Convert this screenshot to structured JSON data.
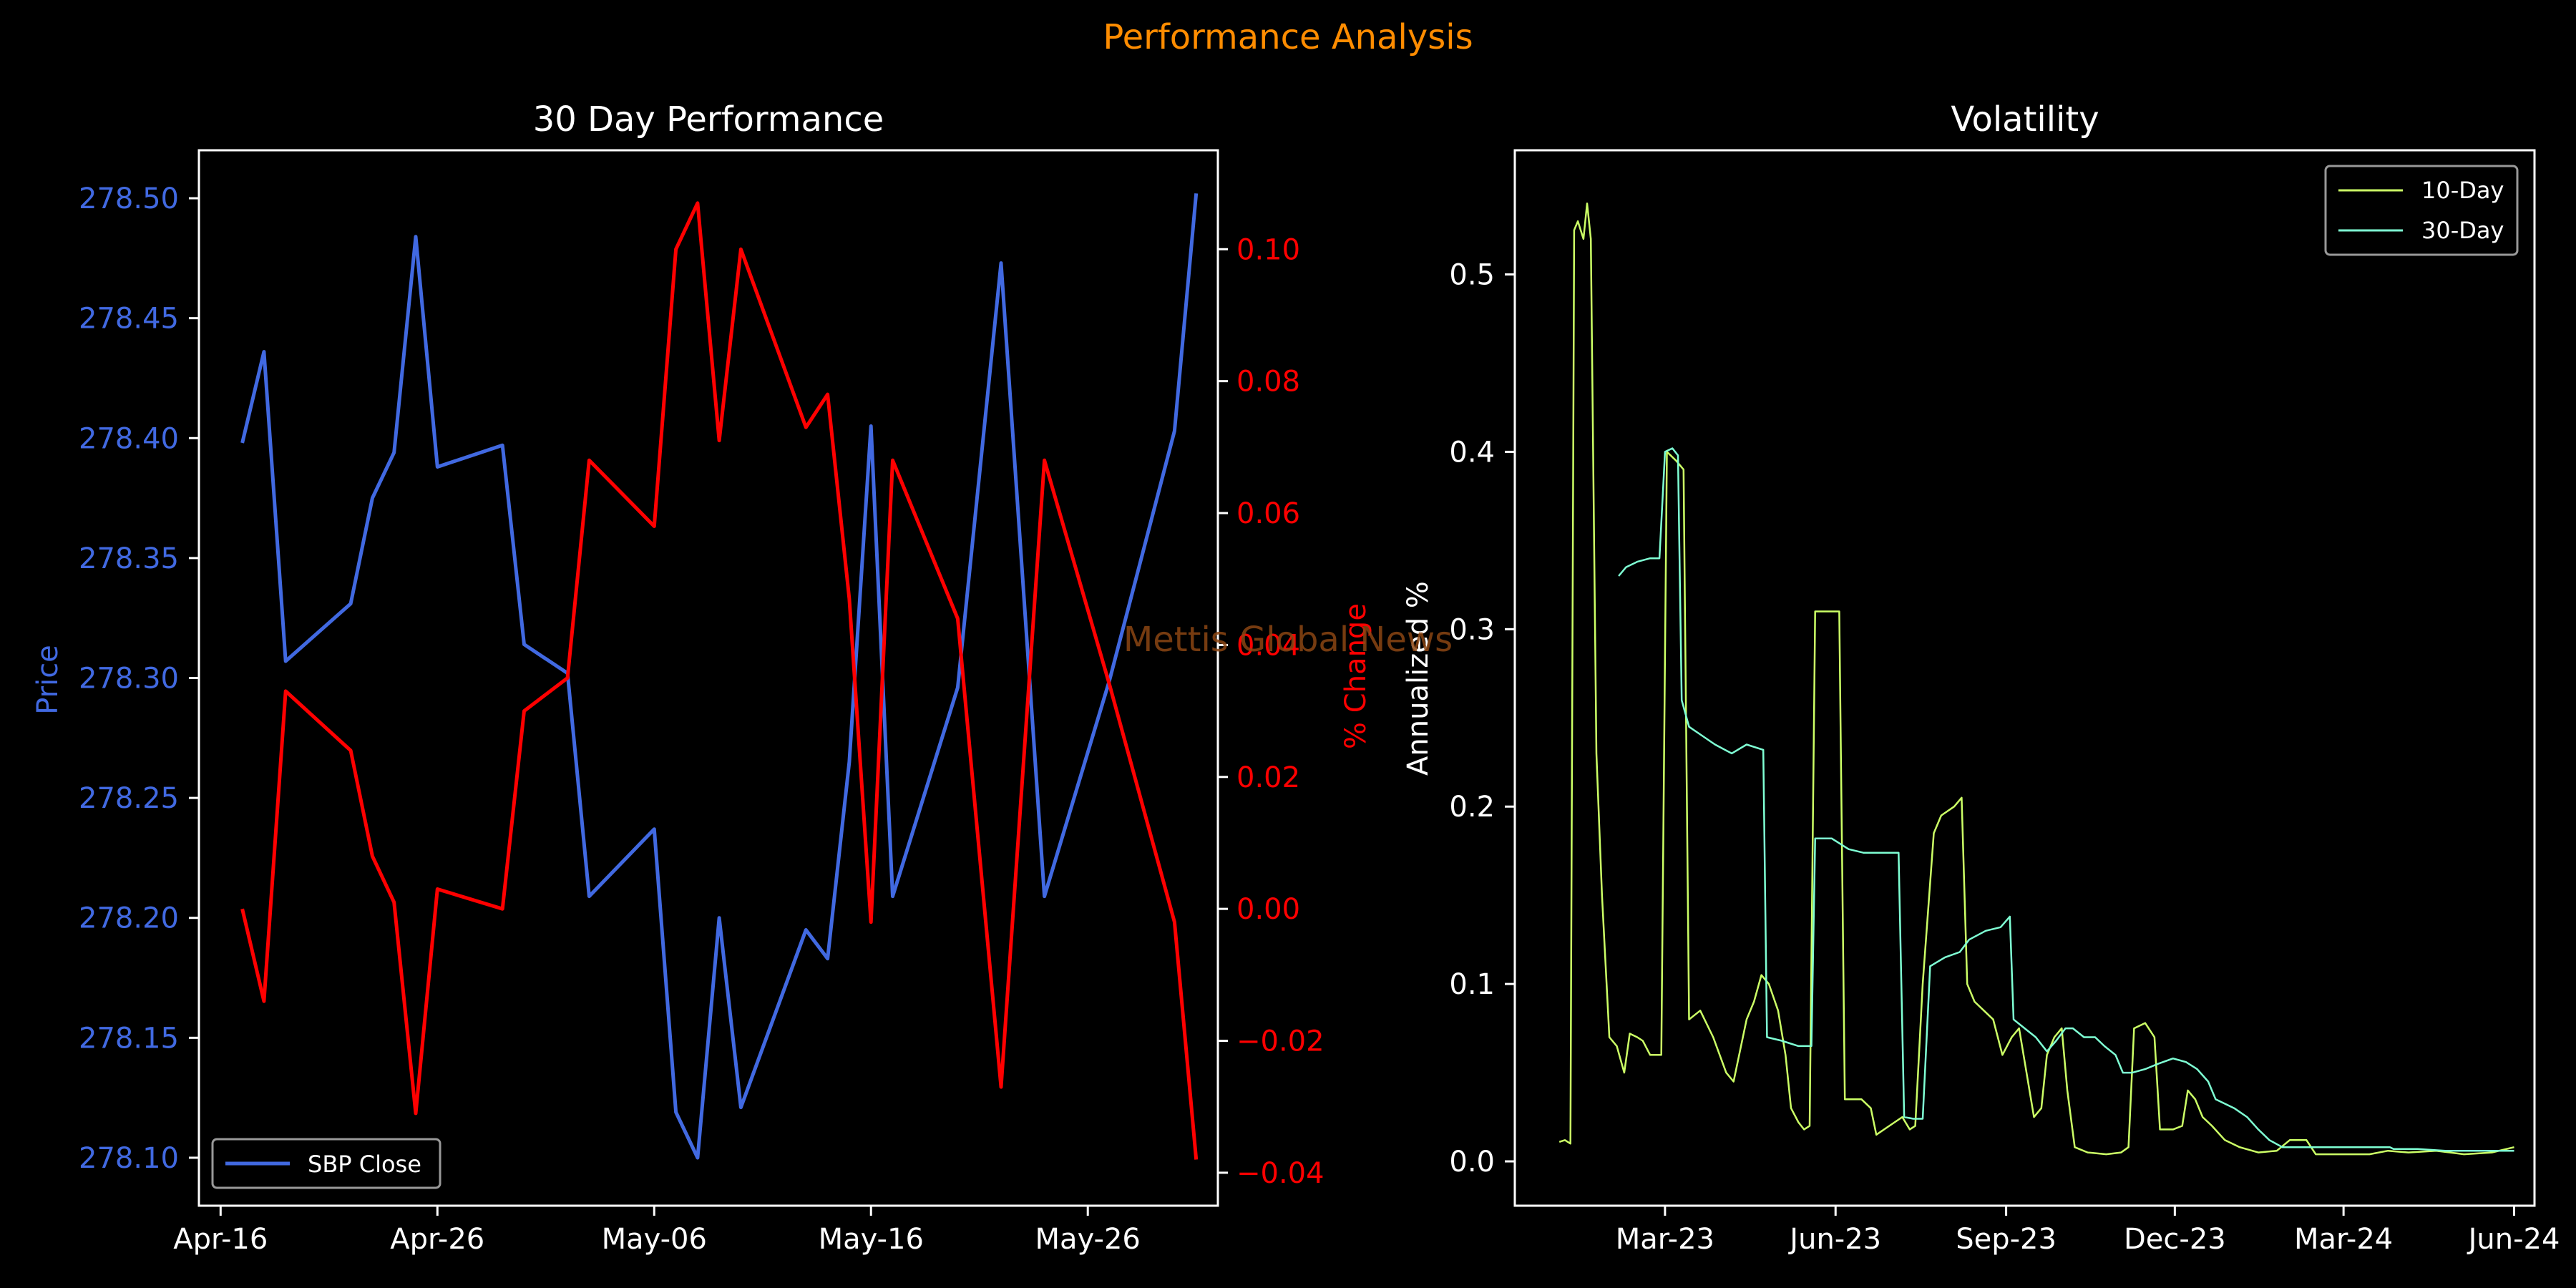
{
  "figure": {
    "suptitle": "Performance Analysis",
    "watermark": "Mettis Global News",
    "colors": {
      "background": "#000000",
      "suptitle": "#ff8c00",
      "price": "#4169e1",
      "pct": "#ff0000",
      "vol10": "#ccff66",
      "vol30": "#7fffd4",
      "axes": "#ffffff",
      "watermark": "#8b4513"
    }
  },
  "chart_data": [
    {
      "type": "line",
      "title": "30 Day Performance",
      "xlabel": "",
      "ylabel": "Price",
      "y2label": "% Change",
      "x_ticks": [
        "Apr-16",
        "Apr-26",
        "May-06",
        "May-16",
        "May-26"
      ],
      "x_tick_dates": [
        "2024-04-16",
        "2024-04-26",
        "2024-05-06",
        "2024-05-16",
        "2024-05-26"
      ],
      "xlim": [
        "2024-04-15",
        "2024-06-01"
      ],
      "ylim": [
        278.08,
        278.52
      ],
      "y_ticks": [
        "278.10",
        "278.15",
        "278.20",
        "278.25",
        "278.30",
        "278.35",
        "278.40",
        "278.45",
        "278.50"
      ],
      "y2lim": [
        -0.045,
        0.115
      ],
      "y2_ticks": [
        "−0.04",
        "−0.02",
        "0.00",
        "0.02",
        "0.04",
        "0.06",
        "0.08",
        "0.10"
      ],
      "legend": {
        "placement": "lower-left",
        "entries": [
          "SBP Close"
        ]
      },
      "series": [
        {
          "name": "SBP Close",
          "axis": "left",
          "points": [
            [
              "2024-04-17",
              278.398
            ],
            [
              "2024-04-18",
              278.436
            ],
            [
              "2024-04-19",
              278.307
            ],
            [
              "2024-04-22",
              278.331
            ],
            [
              "2024-04-23",
              278.375
            ],
            [
              "2024-04-24",
              278.394
            ],
            [
              "2024-04-25",
              278.484
            ],
            [
              "2024-04-26",
              278.388
            ],
            [
              "2024-04-29",
              278.397
            ],
            [
              "2024-04-30",
              278.314
            ],
            [
              "2024-05-02",
              278.302
            ],
            [
              "2024-05-03",
              278.209
            ],
            [
              "2024-05-06",
              278.237
            ],
            [
              "2024-05-07",
              278.119
            ],
            [
              "2024-05-08",
              278.1
            ],
            [
              "2024-05-09",
              278.2
            ],
            [
              "2024-05-10",
              278.121
            ],
            [
              "2024-05-13",
              278.195
            ],
            [
              "2024-05-14",
              278.183
            ],
            [
              "2024-05-15",
              278.265
            ],
            [
              "2024-05-16",
              278.405
            ],
            [
              "2024-05-17",
              278.209
            ],
            [
              "2024-05-20",
              278.296
            ],
            [
              "2024-05-22",
              278.473
            ],
            [
              "2024-05-24",
              278.209
            ],
            [
              "2024-05-27",
              278.299
            ],
            [
              "2024-05-30",
              278.403
            ],
            [
              "2024-05-31",
              278.502
            ]
          ]
        },
        {
          "name": "% Change",
          "axis": "right",
          "points": [
            [
              "2024-04-17",
              0.0
            ],
            [
              "2024-04-18",
              -0.014
            ],
            [
              "2024-04-19",
              0.033
            ],
            [
              "2024-04-22",
              0.024
            ],
            [
              "2024-04-23",
              0.008
            ],
            [
              "2024-04-24",
              0.001
            ],
            [
              "2024-04-25",
              -0.031
            ],
            [
              "2024-04-26",
              0.003
            ],
            [
              "2024-04-29",
              0.0
            ],
            [
              "2024-04-30",
              0.03
            ],
            [
              "2024-05-02",
              0.035
            ],
            [
              "2024-05-03",
              0.068
            ],
            [
              "2024-05-06",
              0.058
            ],
            [
              "2024-05-07",
              0.1
            ],
            [
              "2024-05-08",
              0.107
            ],
            [
              "2024-05-09",
              0.071
            ],
            [
              "2024-05-10",
              0.1
            ],
            [
              "2024-05-13",
              0.073
            ],
            [
              "2024-05-14",
              0.078
            ],
            [
              "2024-05-15",
              0.047
            ],
            [
              "2024-05-16",
              -0.002
            ],
            [
              "2024-05-17",
              0.068
            ],
            [
              "2024-05-20",
              0.044
            ],
            [
              "2024-05-22",
              -0.027
            ],
            [
              "2024-05-24",
              0.068
            ],
            [
              "2024-05-27",
              0.034
            ],
            [
              "2024-05-30",
              -0.002
            ],
            [
              "2024-05-31",
              -0.038
            ]
          ]
        }
      ]
    },
    {
      "type": "line",
      "title": "Volatility",
      "xlabel": "",
      "ylabel": "Annualized %",
      "x_ticks": [
        "Mar-23",
        "Jun-23",
        "Sep-23",
        "Dec-23",
        "Mar-24",
        "Jun-24"
      ],
      "x_tick_dates": [
        "2023-03-01",
        "2023-06-01",
        "2023-09-01",
        "2023-12-01",
        "2024-03-01",
        "2024-06-01"
      ],
      "xlim": [
        "2022-12-10",
        "2024-06-12"
      ],
      "ylim": [
        -0.025,
        0.57
      ],
      "y_ticks": [
        "0.0",
        "0.1",
        "0.2",
        "0.3",
        "0.4",
        "0.5"
      ],
      "legend": {
        "placement": "top-right",
        "entries": [
          "10-Day",
          "30-Day"
        ]
      },
      "series": [
        {
          "name": "10-Day",
          "points": [
            [
              "2023-01-03",
              0.011
            ],
            [
              "2023-01-06",
              0.012
            ],
            [
              "2023-01-09",
              0.01
            ],
            [
              "2023-01-11",
              0.525
            ],
            [
              "2023-01-13",
              0.53
            ],
            [
              "2023-01-16",
              0.52
            ],
            [
              "2023-01-18",
              0.54
            ],
            [
              "2023-01-20",
              0.52
            ],
            [
              "2023-01-23",
              0.23
            ],
            [
              "2023-01-26",
              0.15
            ],
            [
              "2023-01-30",
              0.07
            ],
            [
              "2023-02-03",
              0.065
            ],
            [
              "2023-02-07",
              0.05
            ],
            [
              "2023-02-10",
              0.072
            ],
            [
              "2023-02-14",
              0.07
            ],
            [
              "2023-02-17",
              0.068
            ],
            [
              "2023-02-21",
              0.06
            ],
            [
              "2023-02-24",
              0.06
            ],
            [
              "2023-02-27",
              0.06
            ],
            [
              "2023-03-02",
              0.4
            ],
            [
              "2023-03-07",
              0.395
            ],
            [
              "2023-03-11",
              0.39
            ],
            [
              "2023-03-14",
              0.08
            ],
            [
              "2023-03-20",
              0.085
            ],
            [
              "2023-03-27",
              0.07
            ],
            [
              "2023-04-03",
              0.05
            ],
            [
              "2023-04-07",
              0.045
            ],
            [
              "2023-04-10",
              0.06
            ],
            [
              "2023-04-14",
              0.08
            ],
            [
              "2023-04-18",
              0.09
            ],
            [
              "2023-04-22",
              0.105
            ],
            [
              "2023-04-26",
              0.1
            ],
            [
              "2023-05-01",
              0.085
            ],
            [
              "2023-05-05",
              0.06
            ],
            [
              "2023-05-08",
              0.03
            ],
            [
              "2023-05-12",
              0.022
            ],
            [
              "2023-05-15",
              0.018
            ],
            [
              "2023-05-18",
              0.02
            ],
            [
              "2023-05-21",
              0.31
            ],
            [
              "2023-05-28",
              0.31
            ],
            [
              "2023-06-03",
              0.31
            ],
            [
              "2023-06-06",
              0.035
            ],
            [
              "2023-06-15",
              0.035
            ],
            [
              "2023-06-20",
              0.03
            ],
            [
              "2023-06-23",
              0.015
            ],
            [
              "2023-06-30",
              0.02
            ],
            [
              "2023-07-07",
              0.025
            ],
            [
              "2023-07-11",
              0.018
            ],
            [
              "2023-07-14",
              0.02
            ],
            [
              "2023-07-18",
              0.1
            ],
            [
              "2023-07-24",
              0.185
            ],
            [
              "2023-07-28",
              0.195
            ],
            [
              "2023-08-04",
              0.2
            ],
            [
              "2023-08-08",
              0.205
            ],
            [
              "2023-08-11",
              0.1
            ],
            [
              "2023-08-15",
              0.09
            ],
            [
              "2023-08-20",
              0.085
            ],
            [
              "2023-08-25",
              0.08
            ],
            [
              "2023-08-30",
              0.06
            ],
            [
              "2023-09-04",
              0.07
            ],
            [
              "2023-09-08",
              0.075
            ],
            [
              "2023-09-12",
              0.05
            ],
            [
              "2023-09-16",
              0.025
            ],
            [
              "2023-09-20",
              0.03
            ],
            [
              "2023-09-23",
              0.06
            ],
            [
              "2023-09-27",
              0.07
            ],
            [
              "2023-10-01",
              0.075
            ],
            [
              "2023-10-04",
              0.04
            ],
            [
              "2023-10-08",
              0.008
            ],
            [
              "2023-10-15",
              0.005
            ],
            [
              "2023-10-25",
              0.004
            ],
            [
              "2023-11-02",
              0.005
            ],
            [
              "2023-11-06",
              0.008
            ],
            [
              "2023-11-09",
              0.075
            ],
            [
              "2023-11-15",
              0.078
            ],
            [
              "2023-11-20",
              0.07
            ],
            [
              "2023-11-23",
              0.018
            ],
            [
              "2023-11-30",
              0.018
            ],
            [
              "2023-12-05",
              0.02
            ],
            [
              "2023-12-08",
              0.04
            ],
            [
              "2023-12-12",
              0.035
            ],
            [
              "2023-12-16",
              0.025
            ],
            [
              "2023-12-21",
              0.02
            ],
            [
              "2023-12-28",
              0.012
            ],
            [
              "2024-01-05",
              0.008
            ],
            [
              "2024-01-15",
              0.005
            ],
            [
              "2024-01-25",
              0.006
            ],
            [
              "2024-02-01",
              0.012
            ],
            [
              "2024-02-10",
              0.012
            ],
            [
              "2024-02-15",
              0.004
            ],
            [
              "2024-03-01",
              0.004
            ],
            [
              "2024-03-15",
              0.004
            ],
            [
              "2024-03-25",
              0.006
            ],
            [
              "2024-04-05",
              0.005
            ],
            [
              "2024-04-20",
              0.006
            ],
            [
              "2024-05-05",
              0.004
            ],
            [
              "2024-05-20",
              0.005
            ],
            [
              "2024-06-01",
              0.008
            ]
          ]
        },
        {
          "name": "30-Day",
          "points": [
            [
              "2023-02-04",
              0.33
            ],
            [
              "2023-02-08",
              0.335
            ],
            [
              "2023-02-14",
              0.338
            ],
            [
              "2023-02-21",
              0.34
            ],
            [
              "2023-02-26",
              0.34
            ],
            [
              "2023-03-01",
              0.4
            ],
            [
              "2023-03-05",
              0.402
            ],
            [
              "2023-03-08",
              0.398
            ],
            [
              "2023-03-10",
              0.26
            ],
            [
              "2023-03-14",
              0.245
            ],
            [
              "2023-03-21",
              0.24
            ],
            [
              "2023-03-28",
              0.235
            ],
            [
              "2023-04-06",
              0.23
            ],
            [
              "2023-04-14",
              0.235
            ],
            [
              "2023-04-23",
              0.232
            ],
            [
              "2023-04-25",
              0.07
            ],
            [
              "2023-05-03",
              0.068
            ],
            [
              "2023-05-12",
              0.065
            ],
            [
              "2023-05-19",
              0.065
            ],
            [
              "2023-05-21",
              0.182
            ],
            [
              "2023-05-30",
              0.182
            ],
            [
              "2023-06-08",
              0.176
            ],
            [
              "2023-06-16",
              0.174
            ],
            [
              "2023-07-05",
              0.174
            ],
            [
              "2023-07-08",
              0.025
            ],
            [
              "2023-07-13",
              0.024
            ],
            [
              "2023-07-18",
              0.024
            ],
            [
              "2023-07-22",
              0.11
            ],
            [
              "2023-07-30",
              0.115
            ],
            [
              "2023-08-07",
              0.118
            ],
            [
              "2023-08-12",
              0.125
            ],
            [
              "2023-08-21",
              0.13
            ],
            [
              "2023-08-29",
              0.132
            ],
            [
              "2023-09-03",
              0.138
            ],
            [
              "2023-09-05",
              0.08
            ],
            [
              "2023-09-11",
              0.075
            ],
            [
              "2023-09-17",
              0.07
            ],
            [
              "2023-09-23",
              0.062
            ],
            [
              "2023-09-28",
              0.068
            ],
            [
              "2023-10-03",
              0.075
            ],
            [
              "2023-10-07",
              0.075
            ],
            [
              "2023-10-13",
              0.07
            ],
            [
              "2023-10-19",
              0.07
            ],
            [
              "2023-10-24",
              0.065
            ],
            [
              "2023-10-30",
              0.06
            ],
            [
              "2023-11-03",
              0.05
            ],
            [
              "2023-11-08",
              0.05
            ],
            [
              "2023-11-15",
              0.052
            ],
            [
              "2023-11-22",
              0.055
            ],
            [
              "2023-11-30",
              0.058
            ],
            [
              "2023-12-07",
              0.056
            ],
            [
              "2023-12-13",
              0.052
            ],
            [
              "2023-12-19",
              0.045
            ],
            [
              "2023-12-23",
              0.035
            ],
            [
              "2024-01-02",
              0.03
            ],
            [
              "2024-01-09",
              0.025
            ],
            [
              "2024-01-15",
              0.018
            ],
            [
              "2024-01-21",
              0.012
            ],
            [
              "2024-01-28",
              0.008
            ],
            [
              "2024-02-05",
              0.008
            ],
            [
              "2024-02-15",
              0.008
            ],
            [
              "2024-02-25",
              0.008
            ],
            [
              "2024-03-05",
              0.008
            ],
            [
              "2024-03-15",
              0.008
            ],
            [
              "2024-03-26",
              0.008
            ],
            [
              "2024-03-28",
              0.007
            ],
            [
              "2024-04-10",
              0.007
            ],
            [
              "2024-04-25",
              0.006
            ],
            [
              "2024-05-10",
              0.006
            ],
            [
              "2024-05-25",
              0.006
            ],
            [
              "2024-06-01",
              0.006
            ]
          ]
        }
      ]
    }
  ]
}
